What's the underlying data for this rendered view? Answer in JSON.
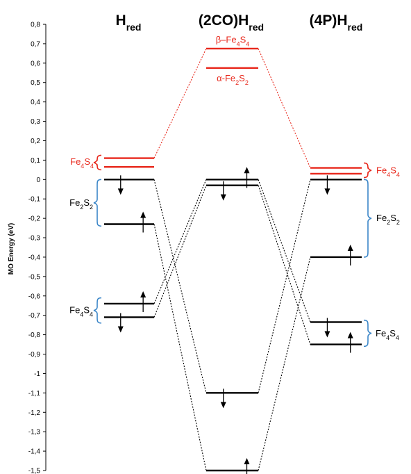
{
  "chart_data": {
    "type": "energy-level-diagram",
    "ylabel": "MO Energy (eV)",
    "ylim": [
      -1.5,
      0.8
    ],
    "ytick_labels": [
      "0,8",
      "0,7",
      "0,6",
      "0,5",
      "0,4",
      "0,3",
      "0,2",
      "0,1",
      "0",
      "-0,1",
      "-0,2",
      "-0,3",
      "-0,4",
      "-0,5",
      "-0,6",
      "-0,7",
      "-0,8",
      "-0,9",
      "-1",
      "-1,1",
      "-1,2",
      "-1,3",
      "-1,4",
      "-1,5"
    ],
    "colors": {
      "occupied": "#000000",
      "unoccupied": "#e8271b",
      "bracket": "#3b86c8"
    },
    "columns": [
      {
        "title": "H",
        "title_sub": "red",
        "levels": [
          {
            "energy": 0.11,
            "color": "red"
          },
          {
            "energy": 0.065,
            "color": "red"
          },
          {
            "energy": 0.0,
            "color": "black",
            "spin": "down"
          },
          {
            "energy": -0.23,
            "color": "black",
            "spin": "up"
          },
          {
            "energy": -0.64,
            "color": "black",
            "spin": "up"
          },
          {
            "energy": -0.71,
            "color": "black",
            "spin": "down"
          }
        ],
        "labels": [
          {
            "name": "Fe4S4",
            "text": "Fe",
            "sub1": "4",
            "mid": "S",
            "sub2": "4",
            "color": "red"
          },
          {
            "name": "Fe2S2",
            "text": "Fe",
            "sub1": "2",
            "mid": "S",
            "sub2": "2",
            "color": "black"
          },
          {
            "name": "Fe4S4",
            "text": "Fe",
            "sub1": "4",
            "mid": "S",
            "sub2": "4",
            "color": "black"
          }
        ]
      },
      {
        "title": "(2CO)H",
        "title_sub": "red",
        "levels": [
          {
            "energy": 0.675,
            "color": "red"
          },
          {
            "energy": 0.575,
            "color": "red"
          },
          {
            "energy": 0.0,
            "color": "black",
            "spin": "up"
          },
          {
            "energy": -0.03,
            "color": "black",
            "spin": "down"
          },
          {
            "energy": -1.1,
            "color": "black",
            "spin": "down"
          },
          {
            "energy": -1.5,
            "color": "black",
            "spin": "up"
          }
        ],
        "labels": [
          {
            "name": "beta-Fe4S4",
            "prefix": "β–",
            "text": "Fe",
            "sub1": "4",
            "mid": "S",
            "sub2": "4",
            "color": "red"
          },
          {
            "name": "alpha-Fe2S2",
            "prefix": "α-",
            "text": "Fe",
            "sub1": "2",
            "mid": "S",
            "sub2": "2",
            "color": "red"
          }
        ]
      },
      {
        "title": "(4P)H",
        "title_sub": "red",
        "levels": [
          {
            "energy": 0.06,
            "color": "red"
          },
          {
            "energy": 0.03,
            "color": "red"
          },
          {
            "energy": 0.0,
            "color": "black",
            "spin": "down"
          },
          {
            "energy": -0.4,
            "color": "black",
            "spin": "up"
          },
          {
            "energy": -0.735,
            "color": "black",
            "spin": "down"
          },
          {
            "energy": -0.85,
            "color": "black",
            "spin": "up"
          }
        ],
        "labels": [
          {
            "name": "Fe4S4",
            "text": "Fe",
            "sub1": "4",
            "mid": "S",
            "sub2": "4",
            "color": "red"
          },
          {
            "name": "Fe2S2",
            "text": "Fe",
            "sub1": "2",
            "mid": "S",
            "sub2": "2",
            "color": "black"
          },
          {
            "name": "Fe4S4",
            "text": "Fe",
            "sub1": "4",
            "mid": "S",
            "sub2": "4",
            "color": "black"
          }
        ]
      }
    ],
    "correlations": [
      {
        "from": [
          0,
          0.11
        ],
        "to": [
          1,
          0.675
        ],
        "color": "red"
      },
      {
        "from": [
          1,
          0.675
        ],
        "to": [
          2,
          0.06
        ],
        "color": "red"
      },
      {
        "from": [
          0,
          0.0
        ],
        "to": [
          1,
          -1.1
        ],
        "color": "black"
      },
      {
        "from": [
          0,
          -0.23
        ],
        "to": [
          1,
          -1.5
        ],
        "color": "black"
      },
      {
        "from": [
          0,
          -0.64
        ],
        "to": [
          1,
          0.0
        ],
        "color": "black"
      },
      {
        "from": [
          0,
          -0.71
        ],
        "to": [
          1,
          -0.03
        ],
        "color": "black"
      },
      {
        "from": [
          1,
          -1.1
        ],
        "to": [
          2,
          0.0
        ],
        "color": "black"
      },
      {
        "from": [
          1,
          -1.5
        ],
        "to": [
          2,
          -0.4
        ],
        "color": "black"
      },
      {
        "from": [
          1,
          0.0
        ],
        "to": [
          2,
          -0.735
        ],
        "color": "black"
      },
      {
        "from": [
          1,
          -0.03
        ],
        "to": [
          2,
          -0.85
        ],
        "color": "black"
      }
    ]
  }
}
